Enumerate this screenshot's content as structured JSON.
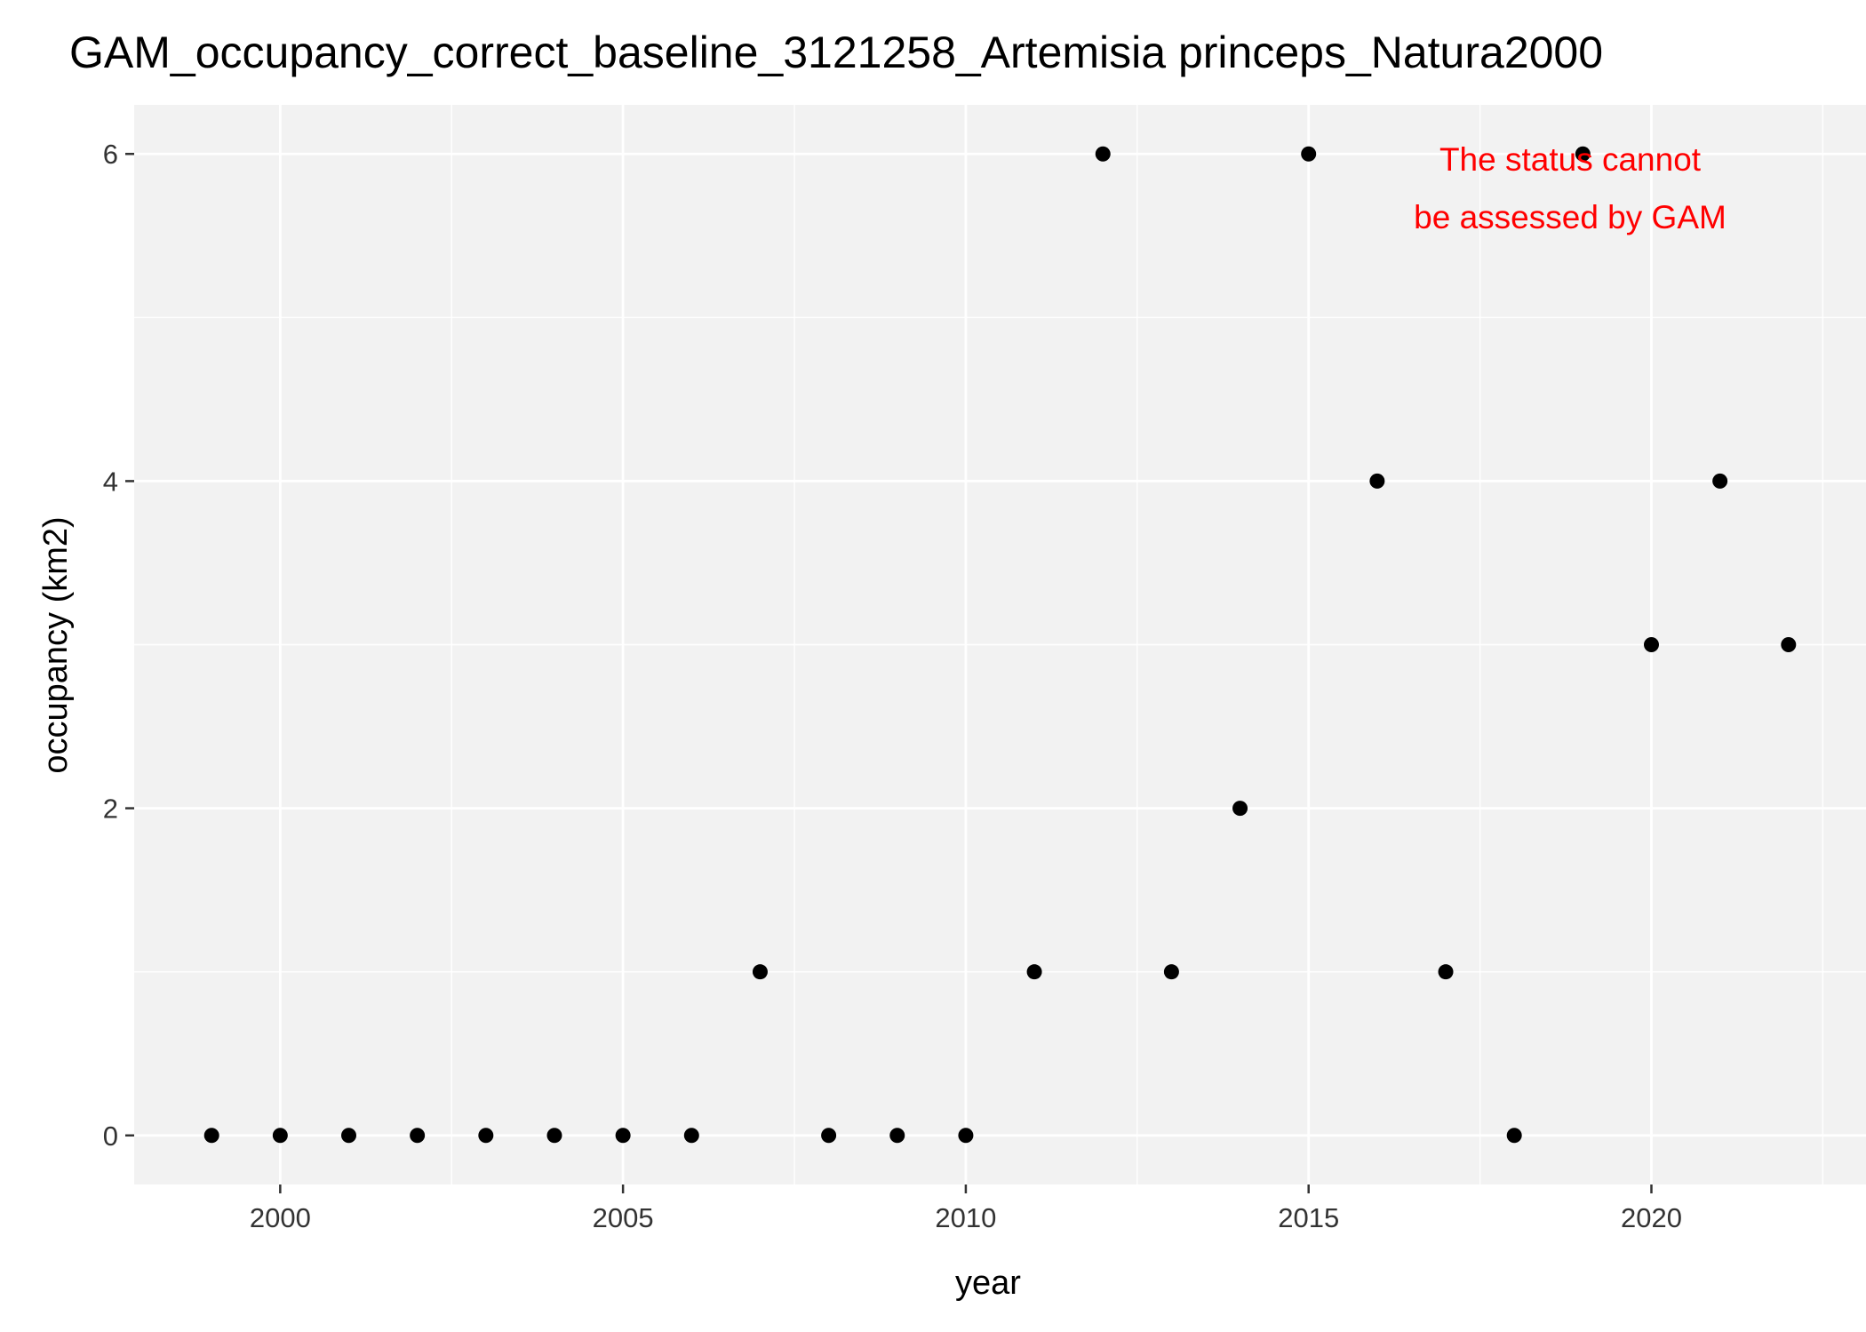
{
  "chart_data": {
    "type": "scatter",
    "title": "GAM_occupancy_correct_baseline_3121258_Artemisia princeps_Natura2000",
    "xlabel": "year",
    "ylabel": "occupancy (km2)",
    "xlim": [
      1997.87,
      2023.13
    ],
    "ylim": [
      -0.3,
      6.3
    ],
    "x_ticks": [
      2000,
      2005,
      2010,
      2015,
      2020
    ],
    "y_ticks": [
      0,
      2,
      4,
      6
    ],
    "grid": true,
    "legend": "none",
    "series": [
      {
        "x": [
          1999,
          2000,
          2001,
          2002,
          2003,
          2004,
          2005,
          2006,
          2007,
          2008,
          2009,
          2010,
          2011,
          2012,
          2013,
          2014,
          2015,
          2016,
          2017,
          2018,
          2019,
          2020,
          2021,
          2022
        ],
        "y": [
          0,
          0,
          0,
          0,
          0,
          0,
          0,
          0,
          1,
          0,
          0,
          0,
          1,
          6,
          1,
          2,
          6,
          4,
          1,
          0,
          6,
          3,
          4,
          3
        ]
      }
    ],
    "annotation": {
      "lines": [
        "The status cannot",
        "be assessed by GAM"
      ],
      "color": "#ff0000"
    }
  },
  "colors": {
    "panel": "#f2f2f2",
    "grid": "#ffffff",
    "point": "#000000",
    "annotation": "#ff0000"
  }
}
